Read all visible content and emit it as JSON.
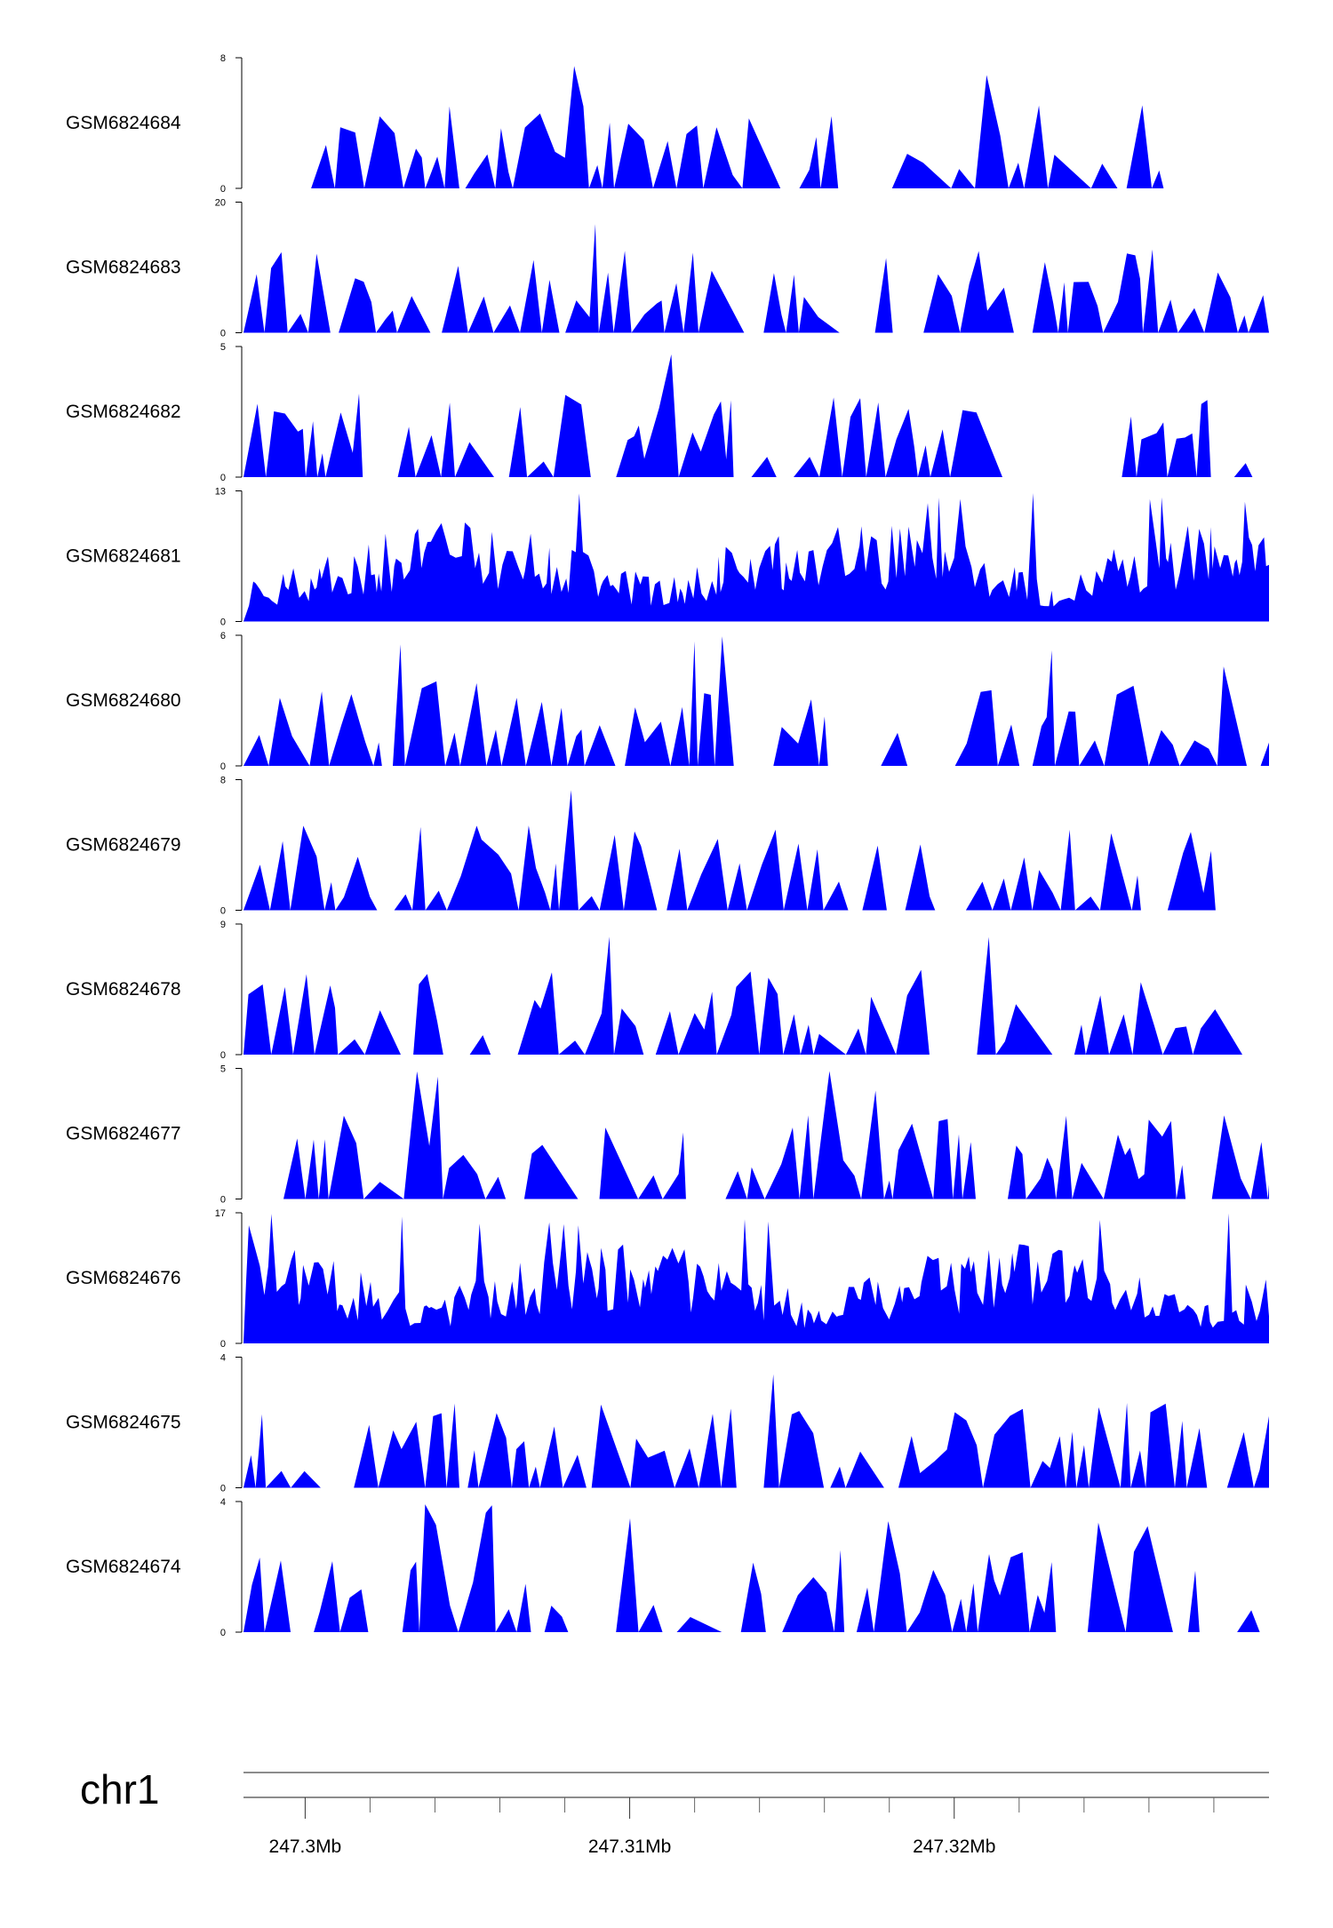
{
  "colors": {
    "signal": "#0000ff",
    "axis": "#000000",
    "ruler": "#666666"
  },
  "chart_data": {
    "type": "area",
    "chromosome": "chr1",
    "x_range_mb": [
      247.2981,
      247.3297
    ],
    "x_unit": "Mb",
    "x_ticks_mb": [
      247.3,
      247.31,
      247.32
    ],
    "x_tick_labels": [
      "247.3Mb",
      "247.31Mb",
      "247.32Mb"
    ],
    "x_minor_tick_step_mb": 0.002,
    "tracks": [
      {
        "name": "GSM6824684",
        "ymax": 8,
        "y_tick_labels": [
          "8",
          "0"
        ]
      },
      {
        "name": "GSM6824683",
        "ymax": 20,
        "y_tick_labels": [
          "20",
          "0"
        ]
      },
      {
        "name": "GSM6824682",
        "ymax": 5,
        "y_tick_labels": [
          "5",
          "0"
        ]
      },
      {
        "name": "GSM6824681",
        "ymax": 13,
        "y_tick_labels": [
          "13",
          "0"
        ]
      },
      {
        "name": "GSM6824680",
        "ymax": 6,
        "y_tick_labels": [
          "6",
          "0"
        ]
      },
      {
        "name": "GSM6824679",
        "ymax": 8,
        "y_tick_labels": [
          "8",
          "0"
        ]
      },
      {
        "name": "GSM6824678",
        "ymax": 9,
        "y_tick_labels": [
          "9",
          "0"
        ]
      },
      {
        "name": "GSM6824677",
        "ymax": 5,
        "y_tick_labels": [
          "5",
          "0"
        ]
      },
      {
        "name": "GSM6824676",
        "ymax": 17,
        "y_tick_labels": [
          "17",
          "0"
        ]
      },
      {
        "name": "GSM6824675",
        "ymax": 4,
        "y_tick_labels": [
          "4",
          "0"
        ]
      },
      {
        "name": "GSM6824674",
        "ymax": 4,
        "y_tick_labels": [
          "4",
          "0"
        ]
      }
    ]
  }
}
